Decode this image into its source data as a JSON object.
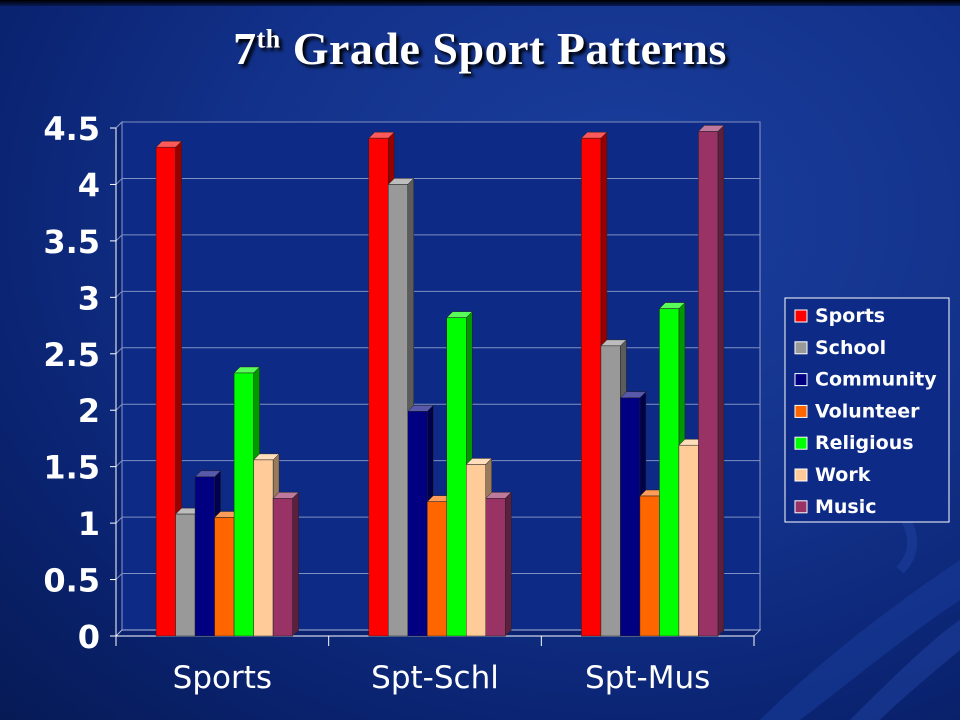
{
  "slide": {
    "title_main": "7",
    "title_sup": "th",
    "title_rest": " Grade Sport Patterns"
  },
  "colors": {
    "background": "#12318a",
    "plot_background": "#0d2a86",
    "axis_text": "#ffffff"
  },
  "chart_data": {
    "type": "bar",
    "title": "7th Grade Sport Patterns",
    "xlabel": "",
    "ylabel": "",
    "categories": [
      "Sports",
      "Spt-Schl",
      "Spt-Mus"
    ],
    "ylim": [
      0,
      4.5
    ],
    "yticks": [
      "0",
      "0.5",
      "1",
      "1.5",
      "2",
      "2.5",
      "3",
      "3.5",
      "4",
      "4.5"
    ],
    "grid": true,
    "legend_position": "right",
    "series": [
      {
        "name": "Sports",
        "color": "#ff0000",
        "values": [
          4.33,
          4.41,
          4.41
        ]
      },
      {
        "name": "School",
        "color": "#999999",
        "values": [
          1.08,
          4.0,
          2.57
        ]
      },
      {
        "name": "Community",
        "color": "#000080",
        "values": [
          1.41,
          1.99,
          2.11
        ]
      },
      {
        "name": "Volunteer",
        "color": "#ff6600",
        "values": [
          1.05,
          1.19,
          1.24
        ]
      },
      {
        "name": "Religious",
        "color": "#00ff00",
        "values": [
          2.33,
          2.82,
          2.9
        ]
      },
      {
        "name": "Work",
        "color": "#ffcc99",
        "values": [
          1.56,
          1.52,
          1.69
        ]
      },
      {
        "name": "Music",
        "color": "#993366",
        "values": [
          1.22,
          1.22,
          4.47
        ]
      }
    ]
  }
}
